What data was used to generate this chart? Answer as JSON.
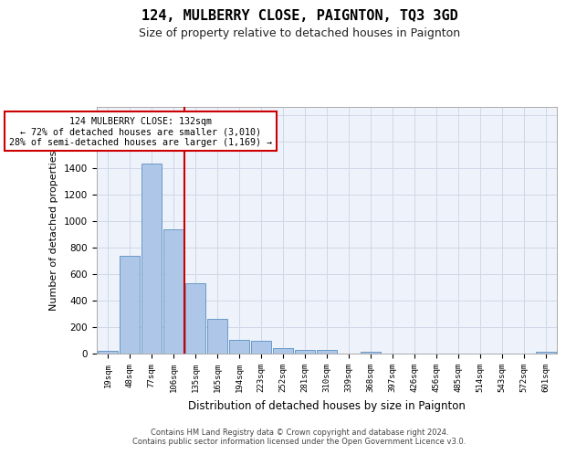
{
  "title": "124, MULBERRY CLOSE, PAIGNTON, TQ3 3GD",
  "subtitle": "Size of property relative to detached houses in Paignton",
  "xlabel": "Distribution of detached houses by size in Paignton",
  "ylabel": "Number of detached properties",
  "footer_line1": "Contains HM Land Registry data © Crown copyright and database right 2024.",
  "footer_line2": "Contains public sector information licensed under the Open Government Licence v3.0.",
  "bin_labels": [
    "19sqm",
    "48sqm",
    "77sqm",
    "106sqm",
    "135sqm",
    "165sqm",
    "194sqm",
    "223sqm",
    "252sqm",
    "281sqm",
    "310sqm",
    "339sqm",
    "368sqm",
    "397sqm",
    "426sqm",
    "456sqm",
    "485sqm",
    "514sqm",
    "543sqm",
    "572sqm",
    "601sqm"
  ],
  "bar_values": [
    20,
    740,
    1430,
    940,
    530,
    265,
    105,
    95,
    40,
    28,
    28,
    0,
    15,
    0,
    0,
    0,
    0,
    0,
    0,
    0,
    15
  ],
  "bar_color": "#aec6e8",
  "bar_edge_color": "#5a8fc2",
  "grid_color": "#d0d8e8",
  "annotation_text": "  124 MULBERRY CLOSE: 132sqm  \n← 72% of detached houses are smaller (3,010)\n28% of semi-detached houses are larger (1,169) →",
  "annotation_box_color": "#ffffff",
  "annotation_border_color": "#cc0000",
  "ylim": [
    0,
    1860
  ],
  "background_color": "#ffffff",
  "plot_bg_color": "#eef2fa"
}
